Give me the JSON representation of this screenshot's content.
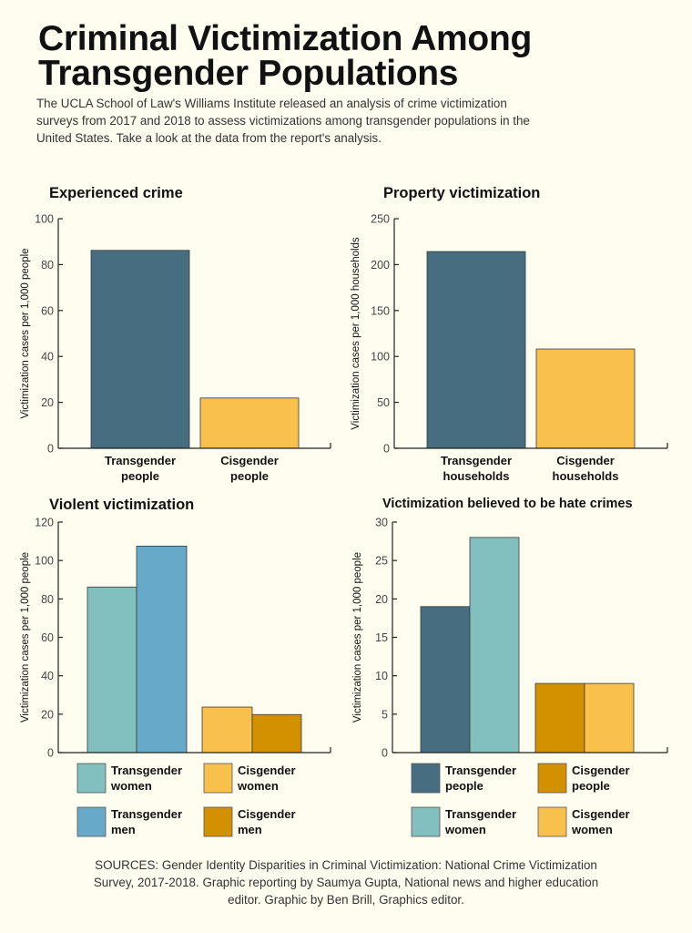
{
  "header": {
    "title_lines": [
      "Criminal Victimization Among",
      "Transgender Populations"
    ],
    "subtitle_lines": [
      "The UCLA School of Law's Williams Institute released an analysis of crime victimization",
      "surveys from 2017 and 2018 to assess victimizations among transgender populations in the",
      "United States. Take a look at the data from the report's analysis."
    ]
  },
  "footer": {
    "sources_lines": [
      "SOURCES: Gender Identity Disparities in Criminal Victimization: National Crime Victimization",
      "Survey, 2017-2018. Graphic reporting by Saumya Gupta, National news and higher education",
      "editor. Graphic by Ben Brill, Graphics editor."
    ]
  },
  "colors": {
    "background": "#fffdf0",
    "dark_teal": "#466d80",
    "yellow": "#f9c04c",
    "light_teal": "#82bfbf",
    "blue": "#67a9c9",
    "gold": "#d39100"
  },
  "chart_data": [
    {
      "type": "bar",
      "title": "Experienced crime",
      "ylabel": "Victimization cases per 1,000 people",
      "ylim": [
        0,
        100
      ],
      "yticks": [
        0,
        20,
        40,
        60,
        80,
        100
      ],
      "categories": [
        "Transgender people",
        "Cisgender people"
      ],
      "category_lines": [
        [
          "Transgender",
          "people"
        ],
        [
          "Cisgender",
          "people"
        ]
      ],
      "values": [
        86.2,
        21.9
      ],
      "bar_colors": [
        "#466d80",
        "#f9c04c"
      ],
      "grid": false
    },
    {
      "type": "bar",
      "title": "Property victimization",
      "ylabel": "Victimization cases per 1,000 households",
      "ylim": [
        0,
        250
      ],
      "yticks": [
        0,
        50,
        100,
        150,
        200,
        250
      ],
      "categories": [
        "Transgender households",
        "Cisgender households"
      ],
      "category_lines": [
        [
          "Transgender",
          "households"
        ],
        [
          "Cisgender",
          "households"
        ]
      ],
      "values": [
        214.2,
        108.1
      ],
      "bar_colors": [
        "#466d80",
        "#f9c04c"
      ],
      "grid": false
    },
    {
      "type": "bar",
      "title": "Violent victimization",
      "ylabel": "Victimization cases per 1,000 people",
      "ylim": [
        0,
        120
      ],
      "yticks": [
        0,
        20,
        40,
        60,
        80,
        100,
        120
      ],
      "series": [
        {
          "name": "Transgender women",
          "value": 86.2,
          "color": "#82bfbf"
        },
        {
          "name": "Transgender men",
          "value": 107.5,
          "color": "#67a9c9"
        },
        {
          "name": "Cisgender women",
          "value": 23.7,
          "color": "#f9c04c"
        },
        {
          "name": "Cisgender men",
          "value": 19.8,
          "color": "#d39100"
        }
      ],
      "legend": [
        {
          "lines": [
            "Transgender",
            "women"
          ],
          "color": "#82bfbf"
        },
        {
          "lines": [
            "Cisgender",
            "women"
          ],
          "color": "#f9c04c"
        },
        {
          "lines": [
            "Transgender",
            "men"
          ],
          "color": "#67a9c9"
        },
        {
          "lines": [
            "Cisgender",
            "men"
          ],
          "color": "#d39100"
        }
      ],
      "legend_placement": "bottom",
      "grid": false
    },
    {
      "type": "bar",
      "title": "Victimization believed to be hate crimes",
      "ylabel": "Victimization cases per 1,000 people",
      "ylim": [
        0,
        30
      ],
      "yticks": [
        0,
        5,
        10,
        15,
        20,
        25,
        30
      ],
      "series": [
        {
          "name": "Transgender people",
          "value": 19,
          "color": "#466d80"
        },
        {
          "name": "Transgender women",
          "value": 28,
          "color": "#82bfbf"
        },
        {
          "name": "Cisgender people",
          "value": 9,
          "color": "#d39100"
        },
        {
          "name": "Cisgender women",
          "value": 9,
          "color": "#f9c04c"
        }
      ],
      "legend": [
        {
          "lines": [
            "Transgender",
            "people"
          ],
          "color": "#466d80"
        },
        {
          "lines": [
            "Cisgender",
            "people"
          ],
          "color": "#d39100"
        },
        {
          "lines": [
            "Transgender",
            "women"
          ],
          "color": "#82bfbf"
        },
        {
          "lines": [
            "Cisgender",
            "women"
          ],
          "color": "#f9c04c"
        }
      ],
      "legend_placement": "bottom",
      "grid": false
    }
  ]
}
